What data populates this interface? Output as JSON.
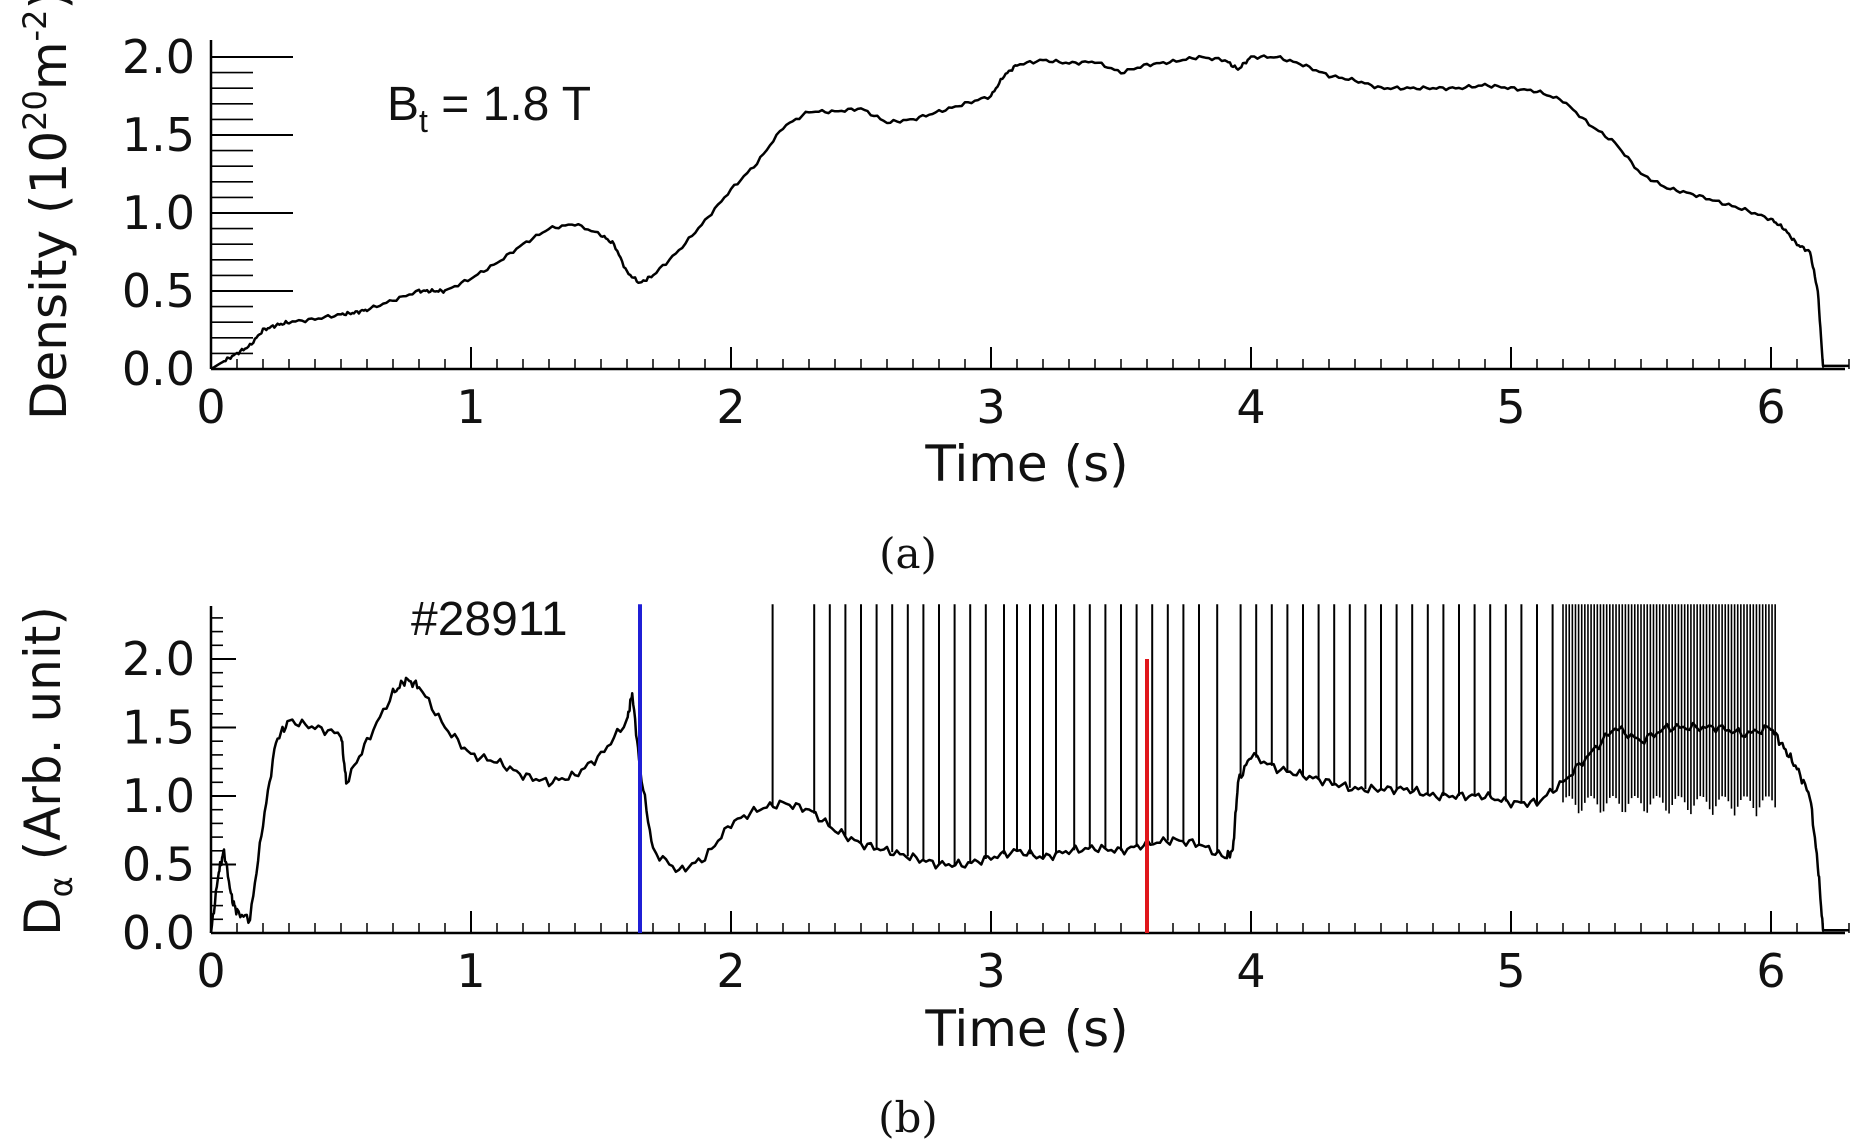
{
  "chart_data": [
    {
      "type": "line",
      "panel_label": "(a)",
      "xlabel": "Time (s)",
      "ylabel": "Density (10",
      "ylabel_sup1": "20",
      "ylabel_mid": "m",
      "ylabel_sup2": "-2",
      "ylabel_end": ")",
      "xlim": [
        0,
        6.3
      ],
      "ylim": [
        0,
        2.05
      ],
      "x_ticks": [
        "0",
        "1",
        "2",
        "3",
        "4",
        "5",
        "6"
      ],
      "y_ticks": [
        "0.0",
        "0.5",
        "1.0",
        "1.5",
        "2.0"
      ],
      "annotation": {
        "base": "B",
        "sub": "t",
        "rest": " = 1.8 T"
      },
      "series": [
        {
          "color": "#000000",
          "x": [
            0.0,
            0.05,
            0.1,
            0.15,
            0.2,
            0.25,
            0.3,
            0.4,
            0.5,
            0.55,
            0.6,
            0.7,
            0.8,
            0.85,
            0.9,
            1.0,
            1.1,
            1.2,
            1.3,
            1.4,
            1.5,
            1.55,
            1.6,
            1.65,
            1.7,
            1.8,
            1.9,
            2.0,
            2.1,
            2.2,
            2.3,
            2.4,
            2.5,
            2.6,
            2.7,
            2.8,
            2.9,
            3.0,
            3.05,
            3.1,
            3.2,
            3.3,
            3.4,
            3.5,
            3.6,
            3.7,
            3.8,
            3.9,
            3.95,
            4.0,
            4.1,
            4.2,
            4.3,
            4.4,
            4.5,
            4.6,
            4.7,
            4.8,
            4.9,
            5.0,
            5.1,
            5.2,
            5.3,
            5.4,
            5.5,
            5.6,
            5.7,
            5.8,
            5.9,
            6.0,
            6.05,
            6.1,
            6.15,
            6.18,
            6.2,
            6.25,
            6.3
          ],
          "y": [
            0.0,
            0.05,
            0.1,
            0.15,
            0.25,
            0.28,
            0.3,
            0.32,
            0.35,
            0.36,
            0.38,
            0.44,
            0.5,
            0.5,
            0.5,
            0.58,
            0.68,
            0.8,
            0.9,
            0.93,
            0.86,
            0.8,
            0.62,
            0.55,
            0.6,
            0.76,
            0.95,
            1.15,
            1.32,
            1.55,
            1.65,
            1.65,
            1.67,
            1.58,
            1.6,
            1.65,
            1.7,
            1.75,
            1.88,
            1.95,
            1.98,
            1.96,
            1.97,
            1.9,
            1.95,
            1.97,
            2.0,
            1.98,
            1.92,
            2.0,
            2.0,
            1.95,
            1.88,
            1.85,
            1.8,
            1.8,
            1.8,
            1.8,
            1.82,
            1.8,
            1.78,
            1.72,
            1.57,
            1.45,
            1.25,
            1.16,
            1.12,
            1.07,
            1.02,
            0.96,
            0.9,
            0.8,
            0.75,
            0.5,
            0.02,
            0.02,
            0.02
          ]
        }
      ]
    },
    {
      "type": "line",
      "panel_label": "(b)",
      "xlabel": "Time (s)",
      "ylabel": "D",
      "ylabel_sub": "α",
      "ylabel_end": " (Arb. unit)",
      "xlim": [
        0,
        6.3
      ],
      "ylim": [
        0,
        2.4
      ],
      "x_ticks": [
        "0",
        "1",
        "2",
        "3",
        "4",
        "5",
        "6"
      ],
      "y_ticks": [
        "0.0",
        "0.5",
        "1.0",
        "1.5",
        "2.0"
      ],
      "annotation": {
        "text": "#28911"
      },
      "markers": [
        {
          "x": 1.65,
          "y_top": 2.4,
          "color": "#1f1fd6"
        },
        {
          "x": 3.6,
          "y_top": 2.0,
          "color": "#e0161b"
        }
      ],
      "series": [
        {
          "color": "#000000",
          "x": [
            0.0,
            0.03,
            0.05,
            0.08,
            0.1,
            0.15,
            0.2,
            0.25,
            0.3,
            0.4,
            0.5,
            0.52,
            0.6,
            0.7,
            0.75,
            0.8,
            0.9,
            1.0,
            1.1,
            1.2,
            1.3,
            1.4,
            1.5,
            1.6,
            1.62,
            1.65,
            1.7,
            1.8,
            1.9,
            2.0,
            2.1,
            2.2,
            2.3,
            2.4,
            2.5,
            2.6,
            2.7,
            2.8,
            2.9,
            3.0,
            3.1,
            3.2,
            3.3,
            3.4,
            3.5,
            3.6,
            3.7,
            3.8,
            3.9,
            3.93,
            3.95,
            4.0,
            4.1,
            4.2,
            4.3,
            4.4,
            4.5,
            4.6,
            4.7,
            4.8,
            4.9,
            5.0,
            5.1,
            5.2,
            5.3,
            5.4,
            5.5,
            5.6,
            5.7,
            5.8,
            5.9,
            6.0,
            6.05,
            6.1,
            6.15,
            6.18,
            6.2,
            6.25,
            6.3
          ],
          "y": [
            0.0,
            0.45,
            0.6,
            0.25,
            0.15,
            0.1,
            0.8,
            1.4,
            1.55,
            1.5,
            1.45,
            1.1,
            1.4,
            1.75,
            1.85,
            1.8,
            1.5,
            1.3,
            1.25,
            1.15,
            1.1,
            1.15,
            1.3,
            1.55,
            1.75,
            1.2,
            0.6,
            0.45,
            0.55,
            0.8,
            0.9,
            0.95,
            0.9,
            0.75,
            0.65,
            0.6,
            0.55,
            0.5,
            0.5,
            0.55,
            0.6,
            0.55,
            0.6,
            0.62,
            0.6,
            0.65,
            0.68,
            0.65,
            0.55,
            0.6,
            1.1,
            1.3,
            1.2,
            1.15,
            1.1,
            1.05,
            1.05,
            1.05,
            1.0,
            1.0,
            1.0,
            0.95,
            0.95,
            1.1,
            1.3,
            1.5,
            1.4,
            1.5,
            1.5,
            1.5,
            1.45,
            1.5,
            1.35,
            1.2,
            1.0,
            0.5,
            0.02,
            0.02,
            0.02
          ]
        }
      ],
      "spikes": [
        2.16,
        2.32,
        2.38,
        2.44,
        2.5,
        2.56,
        2.62,
        2.68,
        2.74,
        2.8,
        2.86,
        2.92,
        2.98,
        3.05,
        3.1,
        3.15,
        3.2,
        3.25,
        3.32,
        3.38,
        3.44,
        3.5,
        3.56,
        3.62,
        3.68,
        3.74,
        3.8,
        3.87,
        3.96,
        4.02,
        4.08,
        4.14,
        4.2,
        4.26,
        4.32,
        4.38,
        4.44,
        4.5,
        4.56,
        4.62,
        4.68,
        4.74,
        4.8,
        4.86,
        4.92,
        4.98,
        5.04,
        5.1,
        5.16
      ]
    }
  ]
}
